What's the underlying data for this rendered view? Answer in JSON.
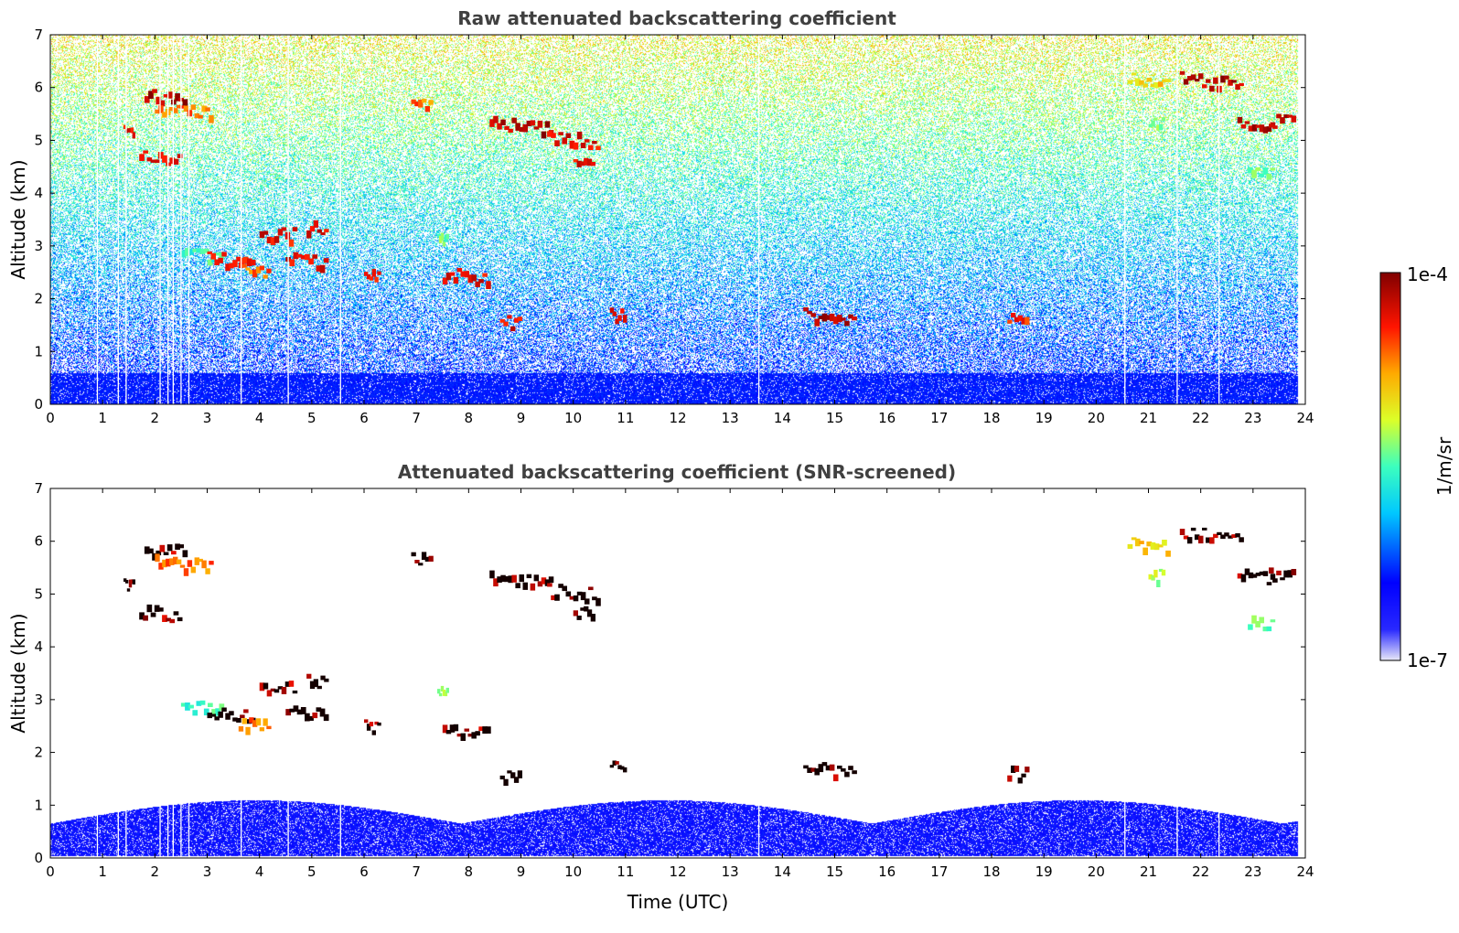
{
  "chart_data": [
    {
      "type": "heatmap",
      "title": "Raw attenuated backscattering coefficient",
      "xlabel": "",
      "ylabel": "Altitude (km)",
      "xlim": [
        0,
        24
      ],
      "ylim": [
        0,
        7
      ],
      "x_ticks": [
        "0",
        "1",
        "2",
        "3",
        "4",
        "5",
        "6",
        "7",
        "8",
        "9",
        "10",
        "11",
        "12",
        "13",
        "14",
        "15",
        "16",
        "17",
        "18",
        "19",
        "20",
        "21",
        "22",
        "23",
        "24"
      ],
      "y_ticks": [
        "0",
        "1",
        "2",
        "3",
        "4",
        "5",
        "6",
        "7"
      ],
      "screened": false,
      "cloud_features": [
        {
          "t0": 1.8,
          "t1": 2.6,
          "alt": 5.9,
          "level": 1.0
        },
        {
          "t0": 2.0,
          "t1": 3.1,
          "alt": 5.65,
          "level": 0.85
        },
        {
          "t0": 1.4,
          "t1": 1.6,
          "alt": 5.2,
          "level": 0.95
        },
        {
          "t0": 1.7,
          "t1": 2.5,
          "alt": 4.7,
          "level": 0.95
        },
        {
          "t0": 2.5,
          "t1": 3.3,
          "alt": 2.9,
          "level": 0.55
        },
        {
          "t0": 3.0,
          "t1": 3.9,
          "alt": 2.8,
          "level": 0.95
        },
        {
          "t0": 3.6,
          "t1": 4.2,
          "alt": 2.6,
          "level": 0.85
        },
        {
          "t0": 4.0,
          "t1": 4.7,
          "alt": 3.3,
          "level": 0.95
        },
        {
          "t0": 4.5,
          "t1": 5.3,
          "alt": 2.8,
          "level": 0.95
        },
        {
          "t0": 4.9,
          "t1": 5.3,
          "alt": 3.4,
          "level": 0.95
        },
        {
          "t0": 6.0,
          "t1": 6.3,
          "alt": 2.55,
          "level": 0.95
        },
        {
          "t0": 6.9,
          "t1": 7.3,
          "alt": 5.7,
          "level": 0.85
        },
        {
          "t0": 7.4,
          "t1": 7.6,
          "alt": 3.2,
          "level": 0.6
        },
        {
          "t0": 7.5,
          "t1": 8.4,
          "alt": 2.5,
          "level": 0.95
        },
        {
          "t0": 8.4,
          "t1": 9.6,
          "alt": 5.35,
          "level": 1.0
        },
        {
          "t0": 9.5,
          "t1": 10.5,
          "alt": 5.1,
          "level": 0.95
        },
        {
          "t0": 10.0,
          "t1": 10.4,
          "alt": 4.7,
          "level": 0.95
        },
        {
          "t0": 8.6,
          "t1": 9.0,
          "alt": 1.6,
          "level": 0.95
        },
        {
          "t0": 10.7,
          "t1": 11.0,
          "alt": 1.75,
          "level": 0.95
        },
        {
          "t0": 14.4,
          "t1": 15.4,
          "alt": 1.75,
          "level": 1.0
        },
        {
          "t0": 18.3,
          "t1": 18.7,
          "alt": 1.65,
          "level": 0.9
        },
        {
          "t0": 20.6,
          "t1": 21.4,
          "alt": 6.2,
          "level": 0.75
        },
        {
          "t0": 21.0,
          "t1": 21.3,
          "alt": 5.4,
          "level": 0.6
        },
        {
          "t0": 21.6,
          "t1": 22.8,
          "alt": 6.2,
          "level": 1.0
        },
        {
          "t0": 22.7,
          "t1": 23.4,
          "alt": 5.4,
          "level": 1.0
        },
        {
          "t0": 23.3,
          "t1": 23.8,
          "alt": 5.4,
          "level": 1.0
        },
        {
          "t0": 22.9,
          "t1": 23.4,
          "alt": 4.5,
          "level": 0.6
        }
      ],
      "boundary_layer": {
        "top_km": 0.6,
        "level": 0.15
      },
      "data_gaps_utc": [
        0.9,
        1.3,
        1.45,
        2.1,
        2.25,
        2.35,
        2.5,
        2.65,
        3.65,
        4.55,
        5.55,
        13.55,
        20.55,
        21.55,
        22.35
      ]
    },
    {
      "type": "heatmap",
      "title": "Attenuated backscattering coefficient (SNR-screened)",
      "xlabel": "Time (UTC)",
      "ylabel": "Altitude (km)",
      "xlim": [
        0,
        24
      ],
      "ylim": [
        0,
        7
      ],
      "x_ticks": [
        "0",
        "1",
        "2",
        "3",
        "4",
        "5",
        "6",
        "7",
        "8",
        "9",
        "10",
        "11",
        "12",
        "13",
        "14",
        "15",
        "16",
        "17",
        "18",
        "19",
        "20",
        "21",
        "22",
        "23",
        "24"
      ],
      "y_ticks": [
        "0",
        "1",
        "2",
        "3",
        "4",
        "5",
        "6",
        "7"
      ],
      "screened": true,
      "cloud_features": [
        {
          "t0": 1.8,
          "t1": 2.6,
          "alt": 5.9,
          "level": 1.0
        },
        {
          "t0": 2.0,
          "t1": 3.1,
          "alt": 5.65,
          "level": 0.85
        },
        {
          "t0": 1.4,
          "t1": 1.6,
          "alt": 5.2,
          "level": 1.0
        },
        {
          "t0": 1.7,
          "t1": 2.5,
          "alt": 4.7,
          "level": 1.0
        },
        {
          "t0": 2.5,
          "t1": 3.3,
          "alt": 2.9,
          "level": 0.55
        },
        {
          "t0": 3.0,
          "t1": 3.9,
          "alt": 2.8,
          "level": 1.0
        },
        {
          "t0": 3.6,
          "t1": 4.2,
          "alt": 2.6,
          "level": 0.85
        },
        {
          "t0": 4.0,
          "t1": 4.7,
          "alt": 3.3,
          "level": 1.0
        },
        {
          "t0": 4.5,
          "t1": 5.3,
          "alt": 2.8,
          "level": 1.0
        },
        {
          "t0": 4.9,
          "t1": 5.3,
          "alt": 3.4,
          "level": 1.0
        },
        {
          "t0": 6.0,
          "t1": 6.3,
          "alt": 2.55,
          "level": 1.0
        },
        {
          "t0": 6.9,
          "t1": 7.3,
          "alt": 5.7,
          "level": 1.0
        },
        {
          "t0": 7.4,
          "t1": 7.6,
          "alt": 3.2,
          "level": 0.65
        },
        {
          "t0": 7.5,
          "t1": 8.4,
          "alt": 2.5,
          "level": 1.0
        },
        {
          "t0": 8.4,
          "t1": 9.6,
          "alt": 5.35,
          "level": 1.0
        },
        {
          "t0": 9.5,
          "t1": 10.5,
          "alt": 5.1,
          "level": 1.0
        },
        {
          "t0": 10.0,
          "t1": 10.4,
          "alt": 4.7,
          "level": 1.0
        },
        {
          "t0": 8.6,
          "t1": 9.0,
          "alt": 1.6,
          "level": 1.0
        },
        {
          "t0": 10.7,
          "t1": 11.0,
          "alt": 1.75,
          "level": 1.0
        },
        {
          "t0": 14.4,
          "t1": 15.4,
          "alt": 1.75,
          "level": 1.0
        },
        {
          "t0": 18.3,
          "t1": 18.7,
          "alt": 1.65,
          "level": 1.0
        },
        {
          "t0": 20.6,
          "t1": 21.4,
          "alt": 6.0,
          "level": 0.75
        },
        {
          "t0": 21.0,
          "t1": 21.3,
          "alt": 5.4,
          "level": 0.65
        },
        {
          "t0": 21.6,
          "t1": 22.8,
          "alt": 6.2,
          "level": 1.0
        },
        {
          "t0": 22.7,
          "t1": 23.4,
          "alt": 5.4,
          "level": 1.0
        },
        {
          "t0": 23.3,
          "t1": 23.8,
          "alt": 5.4,
          "level": 1.0
        },
        {
          "t0": 22.9,
          "t1": 23.4,
          "alt": 4.5,
          "level": 0.6
        }
      ],
      "boundary_layer": {
        "top_km": 1.1,
        "level": 0.1
      },
      "data_gaps_utc": [
        0.9,
        1.3,
        1.45,
        2.1,
        2.25,
        2.35,
        2.5,
        2.65,
        3.65,
        4.55,
        5.55,
        13.55,
        20.55,
        21.55,
        22.35
      ]
    }
  ],
  "colorbar": {
    "label": "1/m/sr",
    "max_label": "1e-4",
    "min_label": "1e-7",
    "vmin": 1e-07,
    "vmax": 0.0001,
    "scale": "log",
    "colormap": "jet",
    "colors": [
      "#e8e8f8",
      "#0000ff",
      "#00ffff",
      "#ffff00",
      "#ff0000",
      "#800000"
    ]
  }
}
